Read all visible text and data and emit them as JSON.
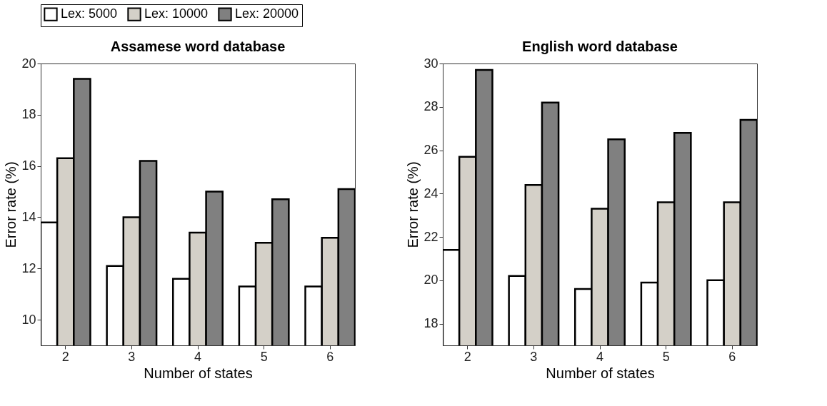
{
  "chart_data": [
    {
      "type": "bar",
      "title": "Assamese word database",
      "xlabel": "Number of states",
      "ylabel": "Error rate (%)",
      "categories": [
        "2",
        "3",
        "4",
        "5",
        "6"
      ],
      "ylim": [
        9,
        20
      ],
      "yticks": [
        10,
        12,
        14,
        16,
        18,
        20
      ],
      "grid": false,
      "legend": "top",
      "series": [
        {
          "name": "Lex: 5000",
          "color": "#ffffff",
          "values": [
            13.8,
            12.1,
            11.6,
            11.3,
            11.3
          ]
        },
        {
          "name": "Lex: 10000",
          "color": "#d4d0c8",
          "values": [
            16.3,
            14.0,
            13.4,
            13.0,
            13.2
          ]
        },
        {
          "name": "Lex: 20000",
          "color": "#808080",
          "values": [
            19.4,
            16.2,
            15.0,
            14.7,
            15.1
          ]
        }
      ]
    },
    {
      "type": "bar",
      "title": "English word database",
      "xlabel": "Number of states",
      "ylabel": "Error rate (%)",
      "categories": [
        "2",
        "3",
        "4",
        "5",
        "6"
      ],
      "ylim": [
        17,
        30
      ],
      "yticks": [
        18,
        20,
        22,
        24,
        26,
        28,
        30
      ],
      "grid": false,
      "legend": "top",
      "series": [
        {
          "name": "Lex: 5000",
          "color": "#ffffff",
          "values": [
            21.4,
            20.2,
            19.6,
            19.9,
            20.0
          ]
        },
        {
          "name": "Lex: 10000",
          "color": "#d4d0c8",
          "values": [
            25.7,
            24.4,
            23.3,
            23.6,
            23.6
          ]
        },
        {
          "name": "Lex: 20000",
          "color": "#808080",
          "values": [
            29.7,
            28.2,
            26.5,
            26.8,
            27.4
          ]
        }
      ]
    }
  ]
}
